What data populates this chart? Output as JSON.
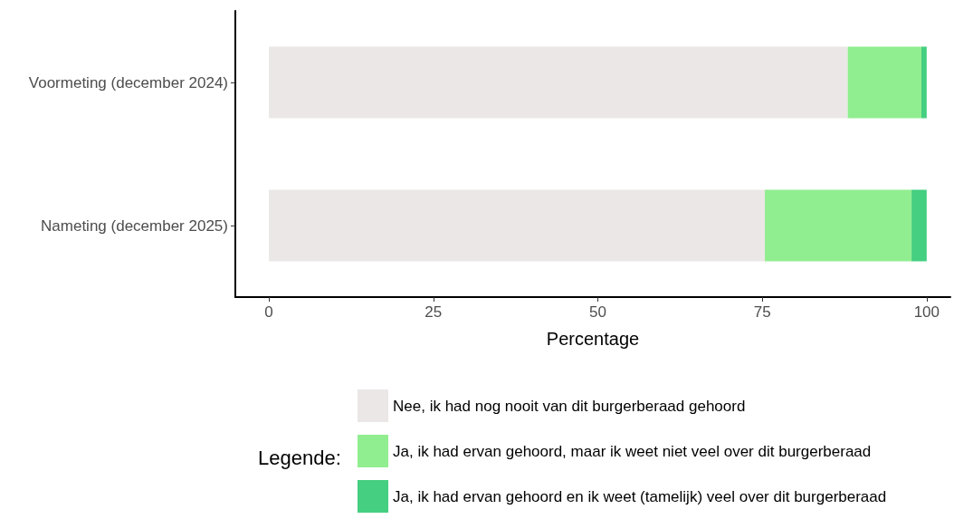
{
  "chart_data": {
    "type": "bar",
    "orientation": "horizontal",
    "stacked": true,
    "categories": [
      "Voormeting (december 2024)",
      "Nameting (december 2025)"
    ],
    "series": [
      {
        "name": "Nee, ik had nog nooit van dit burgerberaad gehoord",
        "color": "#ebe7e6",
        "values": [
          88,
          75.4
        ]
      },
      {
        "name": "Ja, ik had ervan gehoord, maar ik weet niet veel over dit burgerberaad",
        "color": "#90ee90",
        "values": [
          11.2,
          22.3
        ]
      },
      {
        "name": "Ja, ik had ervan gehoord en ik weet (tamelijk) veel over dit burgerberaad",
        "color": "#45cf80",
        "values": [
          0.8,
          2.3
        ]
      }
    ],
    "xlabel": "Percentage",
    "xlim": [
      -5.1,
      103.6
    ],
    "xticks": [
      0,
      25,
      50,
      75,
      100
    ],
    "legend": "bottom",
    "legend_title": "Legende:",
    "grid": false
  }
}
